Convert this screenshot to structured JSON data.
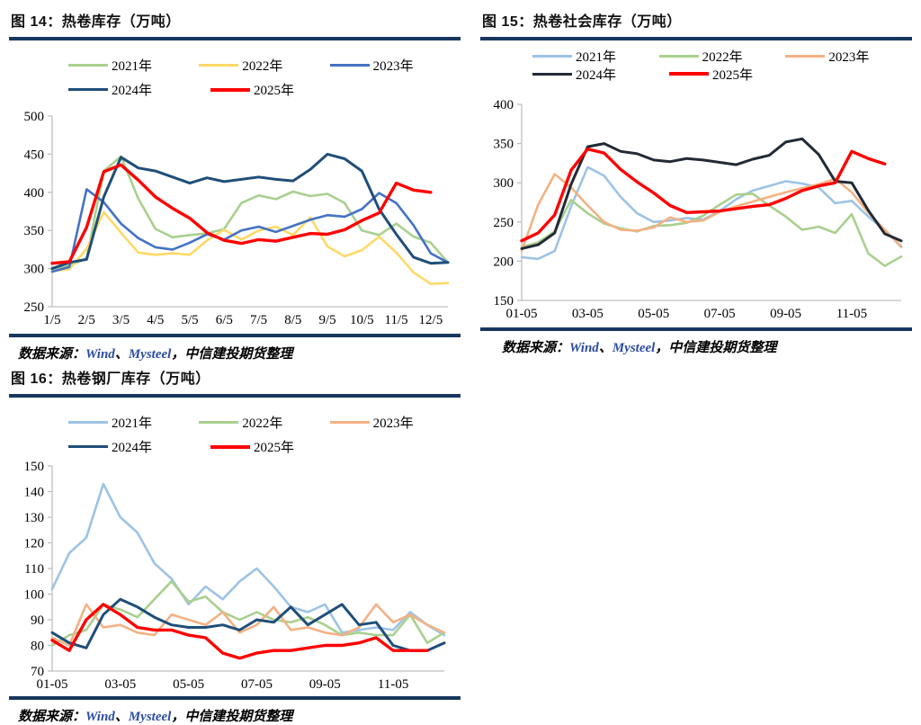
{
  "source_note": {
    "prefix": "数据来源：",
    "wind": "Wind",
    "delim": "、",
    "mysteel": "Mysteel",
    "suffix": "，中信建投期货整理"
  },
  "chart_data": [
    {
      "id": "fig14",
      "type": "line",
      "title": "图 14：热卷库存（万吨）",
      "ylim": [
        250,
        500
      ],
      "y_step": 50,
      "n_points": 24,
      "x_tick_labels": [
        "1/5",
        "2/5",
        "3/5",
        "4/5",
        "5/5",
        "6/5",
        "7/5",
        "8/5",
        "9/5",
        "10/5",
        "11/5",
        "12/5"
      ],
      "x_tick_indices": [
        0,
        2,
        4,
        6,
        8,
        10,
        12,
        14,
        16,
        18,
        20,
        22
      ],
      "legend_position": "top",
      "grid": false,
      "series": [
        {
          "name": "2021年",
          "color": "#A9D08E",
          "values": [
            300,
            304,
            313,
            428,
            447,
            392,
            352,
            341,
            344,
            346,
            352,
            386,
            396,
            391,
            401,
            395,
            398,
            386,
            350,
            344,
            359,
            342,
            334,
            308
          ]
        },
        {
          "name": "2022年",
          "color": "#FFD966",
          "values": [
            297,
            299,
            326,
            374,
            347,
            321,
            318,
            320,
            318,
            337,
            351,
            338,
            350,
            355,
            344,
            367,
            329,
            316,
            324,
            342,
            321,
            295,
            280,
            281
          ]
        },
        {
          "name": "2023年",
          "color": "#4472C4",
          "values": [
            296,
            302,
            404,
            387,
            359,
            340,
            328,
            325,
            334,
            345,
            338,
            350,
            355,
            348,
            356,
            364,
            370,
            368,
            378,
            399,
            386,
            357,
            320,
            308
          ]
        },
        {
          "name": "2024年",
          "color": "#1F4E79",
          "values": [
            300,
            308,
            312,
            394,
            446,
            432,
            428,
            420,
            412,
            419,
            414,
            417,
            420,
            417,
            415,
            430,
            450,
            444,
            428,
            378,
            345,
            315,
            307,
            308
          ]
        },
        {
          "name": "2025年",
          "color": "#FF0000",
          "values": [
            307,
            309,
            354,
            427,
            436,
            416,
            394,
            379,
            366,
            347,
            337,
            333,
            338,
            336,
            341,
            346,
            345,
            351,
            363,
            373,
            412,
            403,
            400,
            null
          ]
        }
      ]
    },
    {
      "id": "fig15",
      "type": "line",
      "title": "图 15：热卷社会库存（万吨）",
      "ylim": [
        150,
        400
      ],
      "y_step": 50,
      "n_points": 24,
      "x_tick_labels": [
        "01-05",
        "03-05",
        "05-05",
        "07-05",
        "09-05",
        "11-05"
      ],
      "x_tick_indices": [
        0,
        4,
        8,
        12,
        16,
        20
      ],
      "legend_position": "top",
      "grid": false,
      "series": [
        {
          "name": "2021年",
          "color": "#9DC3E6",
          "values": [
            205,
            203,
            213,
            270,
            320,
            309,
            282,
            261,
            250,
            252,
            255,
            253,
            264,
            279,
            290,
            296,
            302,
            299,
            294,
            274,
            277,
            257,
            240,
            218
          ]
        },
        {
          "name": "2022年",
          "color": "#A9D08E",
          "values": [
            218,
            224,
            238,
            278,
            261,
            248,
            242,
            238,
            245,
            246,
            249,
            258,
            272,
            285,
            286,
            271,
            257,
            240,
            244,
            236,
            260,
            210,
            194,
            206
          ]
        },
        {
          "name": "2023年",
          "color": "#F4B183",
          "values": [
            213,
            272,
            311,
            294,
            271,
            250,
            240,
            239,
            243,
            256,
            250,
            252,
            263,
            270,
            276,
            282,
            288,
            293,
            298,
            305,
            288,
            262,
            240,
            219
          ]
        },
        {
          "name": "2024年",
          "color": "#222A35",
          "values": [
            216,
            221,
            236,
            298,
            346,
            350,
            340,
            337,
            329,
            327,
            331,
            329,
            326,
            323,
            330,
            335,
            352,
            356,
            336,
            302,
            300,
            265,
            235,
            226
          ]
        },
        {
          "name": "2025年",
          "color": "#FF0000",
          "values": [
            226,
            236,
            259,
            316,
            343,
            338,
            317,
            301,
            287,
            271,
            262,
            263,
            264,
            267,
            270,
            272,
            280,
            290,
            296,
            300,
            340,
            331,
            324,
            null
          ]
        }
      ]
    },
    {
      "id": "fig16",
      "type": "line",
      "title": "图 16：热卷钢厂库存（万吨）",
      "ylim": [
        70,
        150
      ],
      "y_step": 10,
      "n_points": 24,
      "x_tick_labels": [
        "01-05",
        "03-05",
        "05-05",
        "07-05",
        "09-05",
        "11-05"
      ],
      "x_tick_indices": [
        0,
        4,
        8,
        12,
        16,
        20
      ],
      "legend_position": "top",
      "grid": false,
      "series": [
        {
          "name": "2021年",
          "color": "#9DC3E6",
          "values": [
            102,
            116,
            122,
            143,
            130,
            124,
            112,
            106,
            96,
            103,
            98,
            105,
            110,
            103,
            95,
            93,
            96,
            85,
            86,
            87,
            86,
            93,
            88,
            84
          ]
        },
        {
          "name": "2022年",
          "color": "#A9D08E",
          "values": [
            80,
            84,
            86,
            96,
            94,
            91,
            98,
            105,
            97,
            99,
            93,
            90,
            93,
            90,
            89,
            91,
            88,
            84,
            85,
            84,
            84,
            92,
            81,
            85
          ]
        },
        {
          "name": "2023年",
          "color": "#F4B183",
          "values": [
            83,
            80,
            96,
            87,
            88,
            85,
            84,
            92,
            90,
            88,
            93,
            85,
            88,
            95,
            86,
            87,
            85,
            84,
            87,
            96,
            89,
            92,
            88,
            85
          ]
        },
        {
          "name": "2024年",
          "color": "#1F4E79",
          "values": [
            85,
            81,
            79,
            92,
            98,
            95,
            91,
            88,
            87,
            87,
            88,
            86,
            90,
            89,
            95,
            88,
            92,
            96,
            88,
            89,
            80,
            78,
            78,
            81
          ]
        },
        {
          "name": "2025年",
          "color": "#FF0000",
          "values": [
            82,
            78,
            90,
            96,
            92,
            87,
            86,
            86,
            84,
            83,
            77,
            75,
            77,
            78,
            78,
            79,
            80,
            80,
            81,
            83,
            78,
            78,
            78,
            null
          ]
        }
      ]
    }
  ],
  "style": {
    "divider_color": "#17375E",
    "axis_color": "#BFBFBF",
    "source_link_color": "#2B4CA0"
  }
}
